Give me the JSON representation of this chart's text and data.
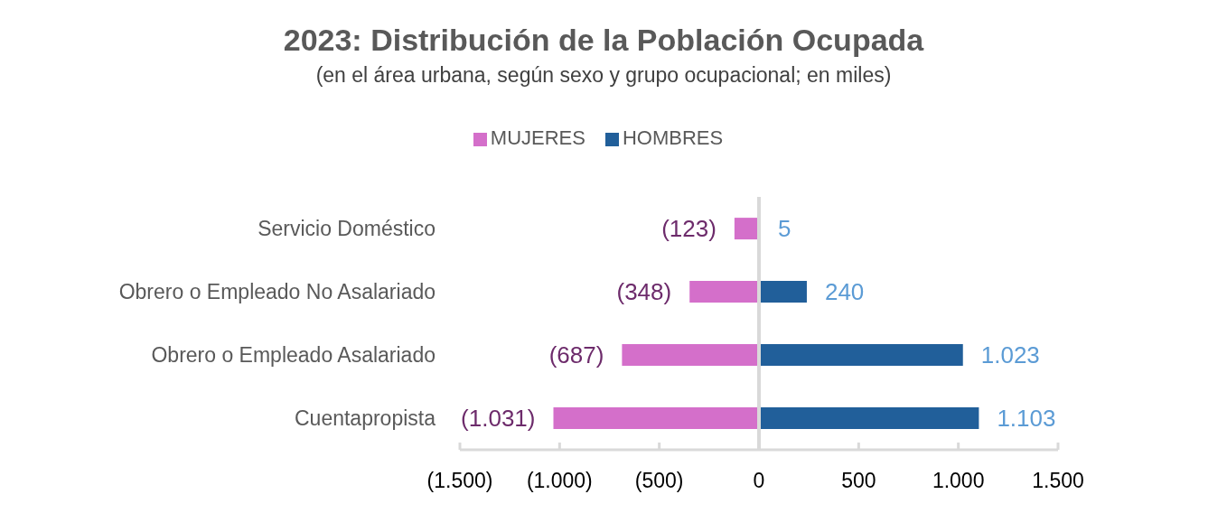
{
  "chart_data": {
    "type": "bar",
    "orientation": "horizontal",
    "stacked": true,
    "title": "2023: Distribución de la Población Ocupada",
    "subtitle": "(en el área urbana, según sexo y grupo ocupacional; en miles)",
    "categories": [
      "Servicio Doméstico",
      "Obrero o Empleado No Asalariado",
      "Obrero o Empleado Asalariado",
      "Cuentapropista"
    ],
    "series": [
      {
        "name": "MUJERES",
        "color": "#d46fca",
        "values": [
          -123,
          -348,
          -687,
          -1031
        ],
        "value_labels": [
          "(123)",
          "(348)",
          "(687)",
          "(1.031)"
        ]
      },
      {
        "name": "HOMBRES",
        "color": "#215f9a",
        "values": [
          5,
          240,
          1023,
          1103
        ],
        "value_labels": [
          "5",
          "240",
          "1.023",
          "1.103"
        ]
      }
    ],
    "xlim": [
      -1500,
      1500
    ],
    "xticks": [
      {
        "value": -1500,
        "label": "(1.500)"
      },
      {
        "value": -1000,
        "label": "(1.000)"
      },
      {
        "value": -500,
        "label": "(500)"
      },
      0,
      500,
      {
        "value": 1000,
        "label": "1.000"
      },
      {
        "value": 1500,
        "label": "1.500"
      }
    ],
    "legend": "top",
    "ref_lines": [
      {
        "axis": "x",
        "value": 0,
        "color": "#d9d9d9"
      }
    ]
  }
}
